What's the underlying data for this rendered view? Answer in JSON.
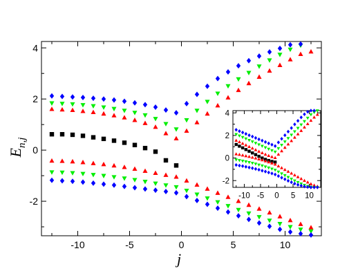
{
  "chart_data": [
    {
      "type": "scatter",
      "title": "",
      "xlabel": "j",
      "ylabel_main": "E",
      "ylabel_sub": "n,j",
      "xlim": [
        -13.5,
        13.5
      ],
      "ylim": [
        -3.35,
        4.25
      ],
      "xticks": [
        -10,
        -5,
        0,
        5,
        10
      ],
      "xtick_labels": [
        "-10",
        "-5",
        "0",
        "5",
        "10"
      ],
      "yticks": [
        -2,
        0,
        2,
        4
      ],
      "ytick_labels": [
        "-2",
        "0",
        "2",
        "4"
      ],
      "grid": false,
      "legend": "none",
      "series": [
        {
          "marker": "square",
          "color": "#000000",
          "x": [
            -12.5,
            -11.5,
            -10.5,
            -9.5,
            -8.5,
            -7.5,
            -6.5,
            -5.5,
            -4.5,
            -3.5,
            -2.5,
            -1.5,
            -0.5
          ],
          "y": [
            0.62,
            0.62,
            0.6,
            0.56,
            0.5,
            0.44,
            0.37,
            0.29,
            0.2,
            0.08,
            -0.06,
            -0.4,
            -0.6
          ]
        },
        {
          "marker": "triangle-up",
          "color": "#ff0000",
          "x": [
            -12.5,
            -11.5,
            -10.5,
            -9.5,
            -8.5,
            -7.5,
            -6.5,
            -5.5,
            -4.5,
            -3.5,
            -2.5,
            -1.5,
            -0.5,
            0.5,
            1.5,
            2.5,
            3.5,
            4.5,
            5.5,
            6.5,
            7.5,
            8.5,
            9.5,
            10.5,
            11.5,
            12.5
          ],
          "y": [
            1.6,
            1.58,
            1.56,
            1.52,
            1.48,
            1.42,
            1.35,
            1.27,
            1.17,
            1.05,
            0.9,
            0.65,
            0.45,
            0.75,
            1.08,
            1.42,
            1.74,
            2.05,
            2.34,
            2.61,
            2.86,
            3.1,
            3.32,
            3.54,
            3.75,
            3.85
          ]
        },
        {
          "marker": "triangle-down",
          "color": "#00ee00",
          "x": [
            -12.5,
            -11.5,
            -10.5,
            -9.5,
            -8.5,
            -7.5,
            -6.5,
            -5.5,
            -4.5,
            -3.5,
            -2.5,
            -1.5,
            -0.5,
            0.5,
            1.5,
            2.5,
            3.5,
            4.5,
            5.5,
            6.5,
            7.5,
            8.5,
            9.5,
            10.5,
            11.5
          ],
          "y": [
            1.84,
            1.82,
            1.8,
            1.77,
            1.73,
            1.68,
            1.62,
            1.55,
            1.47,
            1.37,
            1.23,
            1.03,
            0.82,
            1.18,
            1.55,
            1.9,
            2.22,
            2.51,
            2.78,
            3.03,
            3.28,
            3.52,
            3.74,
            3.94,
            4.1
          ]
        },
        {
          "marker": "diamond",
          "color": "#0000ff",
          "x": [
            -12.5,
            -11.5,
            -10.5,
            -9.5,
            -8.5,
            -7.5,
            -6.5,
            -5.5,
            -4.5,
            -3.5,
            -2.5,
            -1.5,
            -0.5,
            0.5,
            1.5,
            2.5,
            3.5,
            4.5,
            5.5,
            6.5,
            7.5,
            8.5,
            9.5,
            10.5,
            11.5
          ],
          "y": [
            2.12,
            2.1,
            2.08,
            2.06,
            2.03,
            2.0,
            1.96,
            1.91,
            1.85,
            1.78,
            1.68,
            1.57,
            1.46,
            1.82,
            2.18,
            2.5,
            2.8,
            3.06,
            3.3,
            3.5,
            3.68,
            3.84,
            3.98,
            4.12,
            4.15
          ]
        },
        {
          "marker": "triangle-up",
          "color": "#ff0000",
          "x": [
            -12.5,
            -11.5,
            -10.5,
            -9.5,
            -8.5,
            -7.5,
            -6.5,
            -5.5,
            -4.5,
            -3.5,
            -2.5,
            -1.5,
            -0.5,
            0.5,
            1.5,
            2.5,
            3.5,
            4.5,
            5.5,
            6.5,
            7.5,
            8.5,
            9.5,
            10.5,
            11.5,
            12.5
          ],
          "y": [
            -0.42,
            -0.43,
            -0.45,
            -0.48,
            -0.52,
            -0.56,
            -0.61,
            -0.67,
            -0.74,
            -0.82,
            -0.9,
            -0.98,
            -1.05,
            -1.2,
            -1.36,
            -1.52,
            -1.68,
            -1.84,
            -2.0,
            -2.15,
            -2.3,
            -2.45,
            -2.6,
            -2.75,
            -2.9,
            -3.03
          ]
        },
        {
          "marker": "triangle-down",
          "color": "#00ee00",
          "x": [
            -12.5,
            -11.5,
            -10.5,
            -9.5,
            -8.5,
            -7.5,
            -6.5,
            -5.5,
            -4.5,
            -3.5,
            -2.5,
            -1.5,
            -0.5,
            0.5,
            1.5,
            2.5,
            3.5,
            4.5,
            5.5,
            6.5,
            7.5,
            8.5,
            9.5,
            10.5,
            11.5,
            12.5
          ],
          "y": [
            -0.86,
            -0.87,
            -0.89,
            -0.92,
            -0.96,
            -1.0,
            -1.05,
            -1.1,
            -1.16,
            -1.23,
            -1.3,
            -1.37,
            -1.44,
            -1.58,
            -1.73,
            -1.88,
            -2.03,
            -2.18,
            -2.33,
            -2.47,
            -2.61,
            -2.75,
            -2.88,
            -3.0,
            -3.1,
            -3.17
          ]
        },
        {
          "marker": "diamond",
          "color": "#0000ff",
          "x": [
            -12.5,
            -11.5,
            -10.5,
            -9.5,
            -8.5,
            -7.5,
            -6.5,
            -5.5,
            -4.5,
            -3.5,
            -2.5,
            -1.5,
            -0.5,
            0.5,
            1.5,
            2.5,
            3.5,
            4.5,
            5.5,
            6.5,
            7.5,
            8.5,
            9.5,
            10.5,
            11.5,
            12.5
          ],
          "y": [
            -1.18,
            -1.2,
            -1.22,
            -1.25,
            -1.29,
            -1.33,
            -1.37,
            -1.42,
            -1.47,
            -1.52,
            -1.57,
            -1.62,
            -1.67,
            -1.82,
            -1.97,
            -2.12,
            -2.27,
            -2.42,
            -2.57,
            -2.71,
            -2.85,
            -2.98,
            -3.1,
            -3.2,
            -3.27,
            -3.32
          ]
        }
      ]
    },
    {
      "type": "scatter",
      "title": "",
      "inset": true,
      "xlim": [
        -13.5,
        13.5
      ],
      "ylim": [
        -2.6,
        4.2
      ],
      "xticks": [
        -10,
        -5,
        0,
        5,
        10
      ],
      "xtick_labels": [
        "-10",
        "-5",
        "0",
        "5",
        "10"
      ],
      "yticks": [
        -2,
        0,
        2,
        4
      ],
      "ytick_labels": [
        "-2",
        "0",
        "2",
        "4"
      ],
      "grid": false,
      "legend": "none",
      "series": [
        {
          "marker": "square",
          "color": "#000000",
          "x": [
            -12.5,
            -11.5,
            -10.5,
            -9.5,
            -8.5,
            -7.5,
            -6.5,
            -5.5,
            -4.5,
            -3.5,
            -2.5,
            -1.5,
            -0.5
          ],
          "y": [
            1.2,
            1.05,
            0.9,
            0.75,
            0.6,
            0.45,
            0.3,
            0.15,
            0.0,
            -0.12,
            -0.22,
            -0.3,
            -0.36
          ]
        },
        {
          "marker": "triangle-up",
          "color": "#ff0000",
          "x": [
            -12.5,
            -11.5,
            -10.5,
            -9.5,
            -8.5,
            -7.5,
            -6.5,
            -5.5,
            -4.5,
            -3.5,
            -2.5,
            -1.5,
            -0.5,
            0.5,
            1.5,
            2.5,
            3.5,
            4.5,
            5.5,
            6.5,
            7.5,
            8.5,
            9.5,
            10.5,
            11.5,
            12.5
          ],
          "y": [
            1.55,
            1.42,
            1.28,
            1.14,
            1.0,
            0.86,
            0.72,
            0.58,
            0.45,
            0.32,
            0.2,
            0.1,
            0.02,
            0.32,
            0.62,
            0.92,
            1.22,
            1.52,
            1.82,
            2.12,
            2.42,
            2.72,
            3.02,
            3.32,
            3.6,
            3.85
          ]
        },
        {
          "marker": "triangle-down",
          "color": "#00ee00",
          "x": [
            -12.5,
            -11.5,
            -10.5,
            -9.5,
            -8.5,
            -7.5,
            -6.5,
            -5.5,
            -4.5,
            -3.5,
            -2.5,
            -1.5,
            -0.5,
            0.5,
            1.5,
            2.5,
            3.5,
            4.5,
            5.5,
            6.5,
            7.5,
            8.5,
            9.5,
            10.5,
            11.5,
            12.5
          ],
          "y": [
            2.1,
            1.97,
            1.84,
            1.71,
            1.58,
            1.45,
            1.32,
            1.19,
            1.06,
            0.93,
            0.8,
            0.67,
            0.55,
            0.85,
            1.15,
            1.45,
            1.75,
            2.05,
            2.35,
            2.65,
            2.95,
            3.25,
            3.55,
            3.85,
            4.05,
            4.2
          ]
        },
        {
          "marker": "diamond",
          "color": "#0000ff",
          "x": [
            -12.5,
            -11.5,
            -10.5,
            -9.5,
            -8.5,
            -7.5,
            -6.5,
            -5.5,
            -4.5,
            -3.5,
            -2.5,
            -1.5,
            -0.5,
            0.5,
            1.5,
            2.5,
            3.5,
            4.5,
            5.5,
            6.5,
            7.5,
            8.5,
            9.5,
            10.5,
            11.5
          ],
          "y": [
            2.5,
            2.38,
            2.26,
            2.14,
            2.02,
            1.9,
            1.78,
            1.66,
            1.54,
            1.42,
            1.3,
            1.18,
            1.06,
            1.38,
            1.7,
            2.02,
            2.34,
            2.66,
            2.98,
            3.3,
            3.6,
            3.88,
            4.1,
            4.2,
            4.2
          ]
        },
        {
          "marker": "triangle-up",
          "color": "#ff0000",
          "x": [
            -12.5,
            -11.5,
            -10.5,
            -9.5,
            -8.5,
            -7.5,
            -6.5,
            -5.5,
            -4.5,
            -3.5,
            -2.5,
            -1.5,
            -0.5,
            0.5,
            1.5,
            2.5,
            3.5,
            4.5,
            5.5,
            6.5,
            7.5,
            8.5,
            9.5,
            10.5,
            11.5,
            12.5
          ],
          "y": [
            0.35,
            0.3,
            0.24,
            0.18,
            0.12,
            0.05,
            -0.02,
            -0.1,
            -0.18,
            -0.27,
            -0.36,
            -0.46,
            -0.56,
            -0.72,
            -0.88,
            -1.04,
            -1.2,
            -1.36,
            -1.52,
            -1.68,
            -1.84,
            -2.0,
            -2.15,
            -2.3,
            -2.42,
            -2.52
          ]
        },
        {
          "marker": "triangle-down",
          "color": "#00ee00",
          "x": [
            -12.5,
            -11.5,
            -10.5,
            -9.5,
            -8.5,
            -7.5,
            -6.5,
            -5.5,
            -4.5,
            -3.5,
            -2.5,
            -1.5,
            -0.5,
            0.5,
            1.5,
            2.5,
            3.5,
            4.5,
            5.5,
            6.5,
            7.5,
            8.5,
            9.5,
            10.5,
            11.5,
            12.5
          ],
          "y": [
            -0.15,
            -0.2,
            -0.26,
            -0.32,
            -0.38,
            -0.45,
            -0.52,
            -0.6,
            -0.68,
            -0.77,
            -0.86,
            -0.96,
            -1.06,
            -1.22,
            -1.38,
            -1.54,
            -1.7,
            -1.86,
            -2.01,
            -2.15,
            -2.28,
            -2.4,
            -2.5,
            -2.56,
            -2.6,
            -2.6
          ]
        },
        {
          "marker": "diamond",
          "color": "#0000ff",
          "x": [
            -12.5,
            -11.5,
            -10.5,
            -9.5,
            -8.5,
            -7.5,
            -6.5,
            -5.5,
            -4.5,
            -3.5,
            -2.5,
            -1.5,
            -0.5,
            0.5,
            1.5,
            2.5,
            3.5,
            4.5,
            5.5,
            6.5,
            7.5,
            8.5,
            9.5,
            10.5,
            11.5,
            12.5
          ],
          "y": [
            -0.62,
            -0.67,
            -0.72,
            -0.78,
            -0.84,
            -0.9,
            -0.97,
            -1.04,
            -1.12,
            -1.2,
            -1.28,
            -1.37,
            -1.46,
            -1.6,
            -1.74,
            -1.88,
            -2.02,
            -2.15,
            -2.27,
            -2.37,
            -2.45,
            -2.52,
            -2.57,
            -2.6,
            -2.6,
            -2.6
          ]
        }
      ]
    }
  ]
}
